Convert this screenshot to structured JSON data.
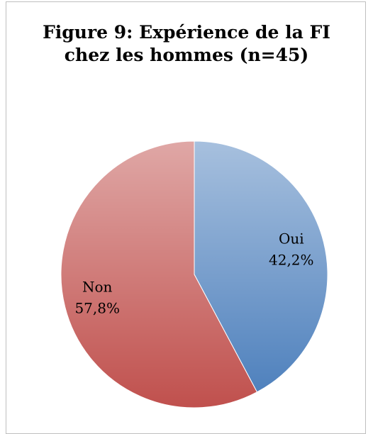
{
  "chart_data": {
    "type": "pie",
    "title": "Figure 9: Expérience de la FI chez les hommes (n=45)",
    "categories": [
      "Oui",
      "Non"
    ],
    "values": [
      42.2,
      57.8
    ],
    "value_labels": [
      "42,2%",
      "57,8%"
    ],
    "colors": [
      "#4f81bd",
      "#c0504d"
    ]
  }
}
